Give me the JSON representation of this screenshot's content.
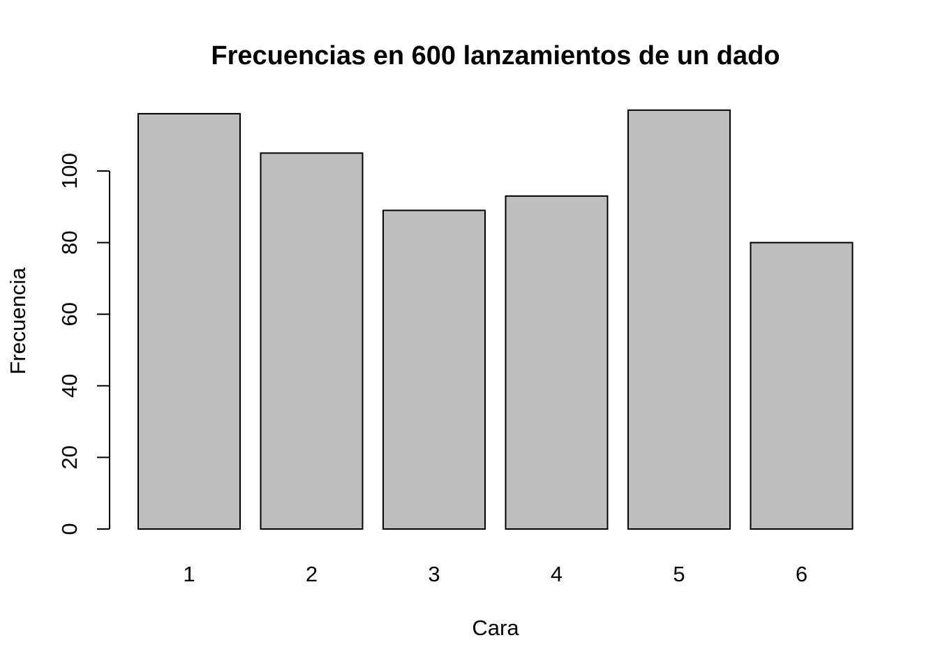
{
  "chart_data": {
    "type": "bar",
    "title": "Frecuencias en 600 lanzamientos de un dado",
    "xlabel": "Cara",
    "ylabel": "Frecuencia",
    "categories": [
      "1",
      "2",
      "3",
      "4",
      "5",
      "6"
    ],
    "values": [
      116,
      105,
      89,
      93,
      117,
      80
    ],
    "ylim": [
      0,
      117
    ],
    "yticks": [
      0,
      20,
      40,
      60,
      80,
      100
    ],
    "grid": false,
    "legend": "none",
    "bar_color": "#bebebe",
    "border_color": "#000000"
  }
}
